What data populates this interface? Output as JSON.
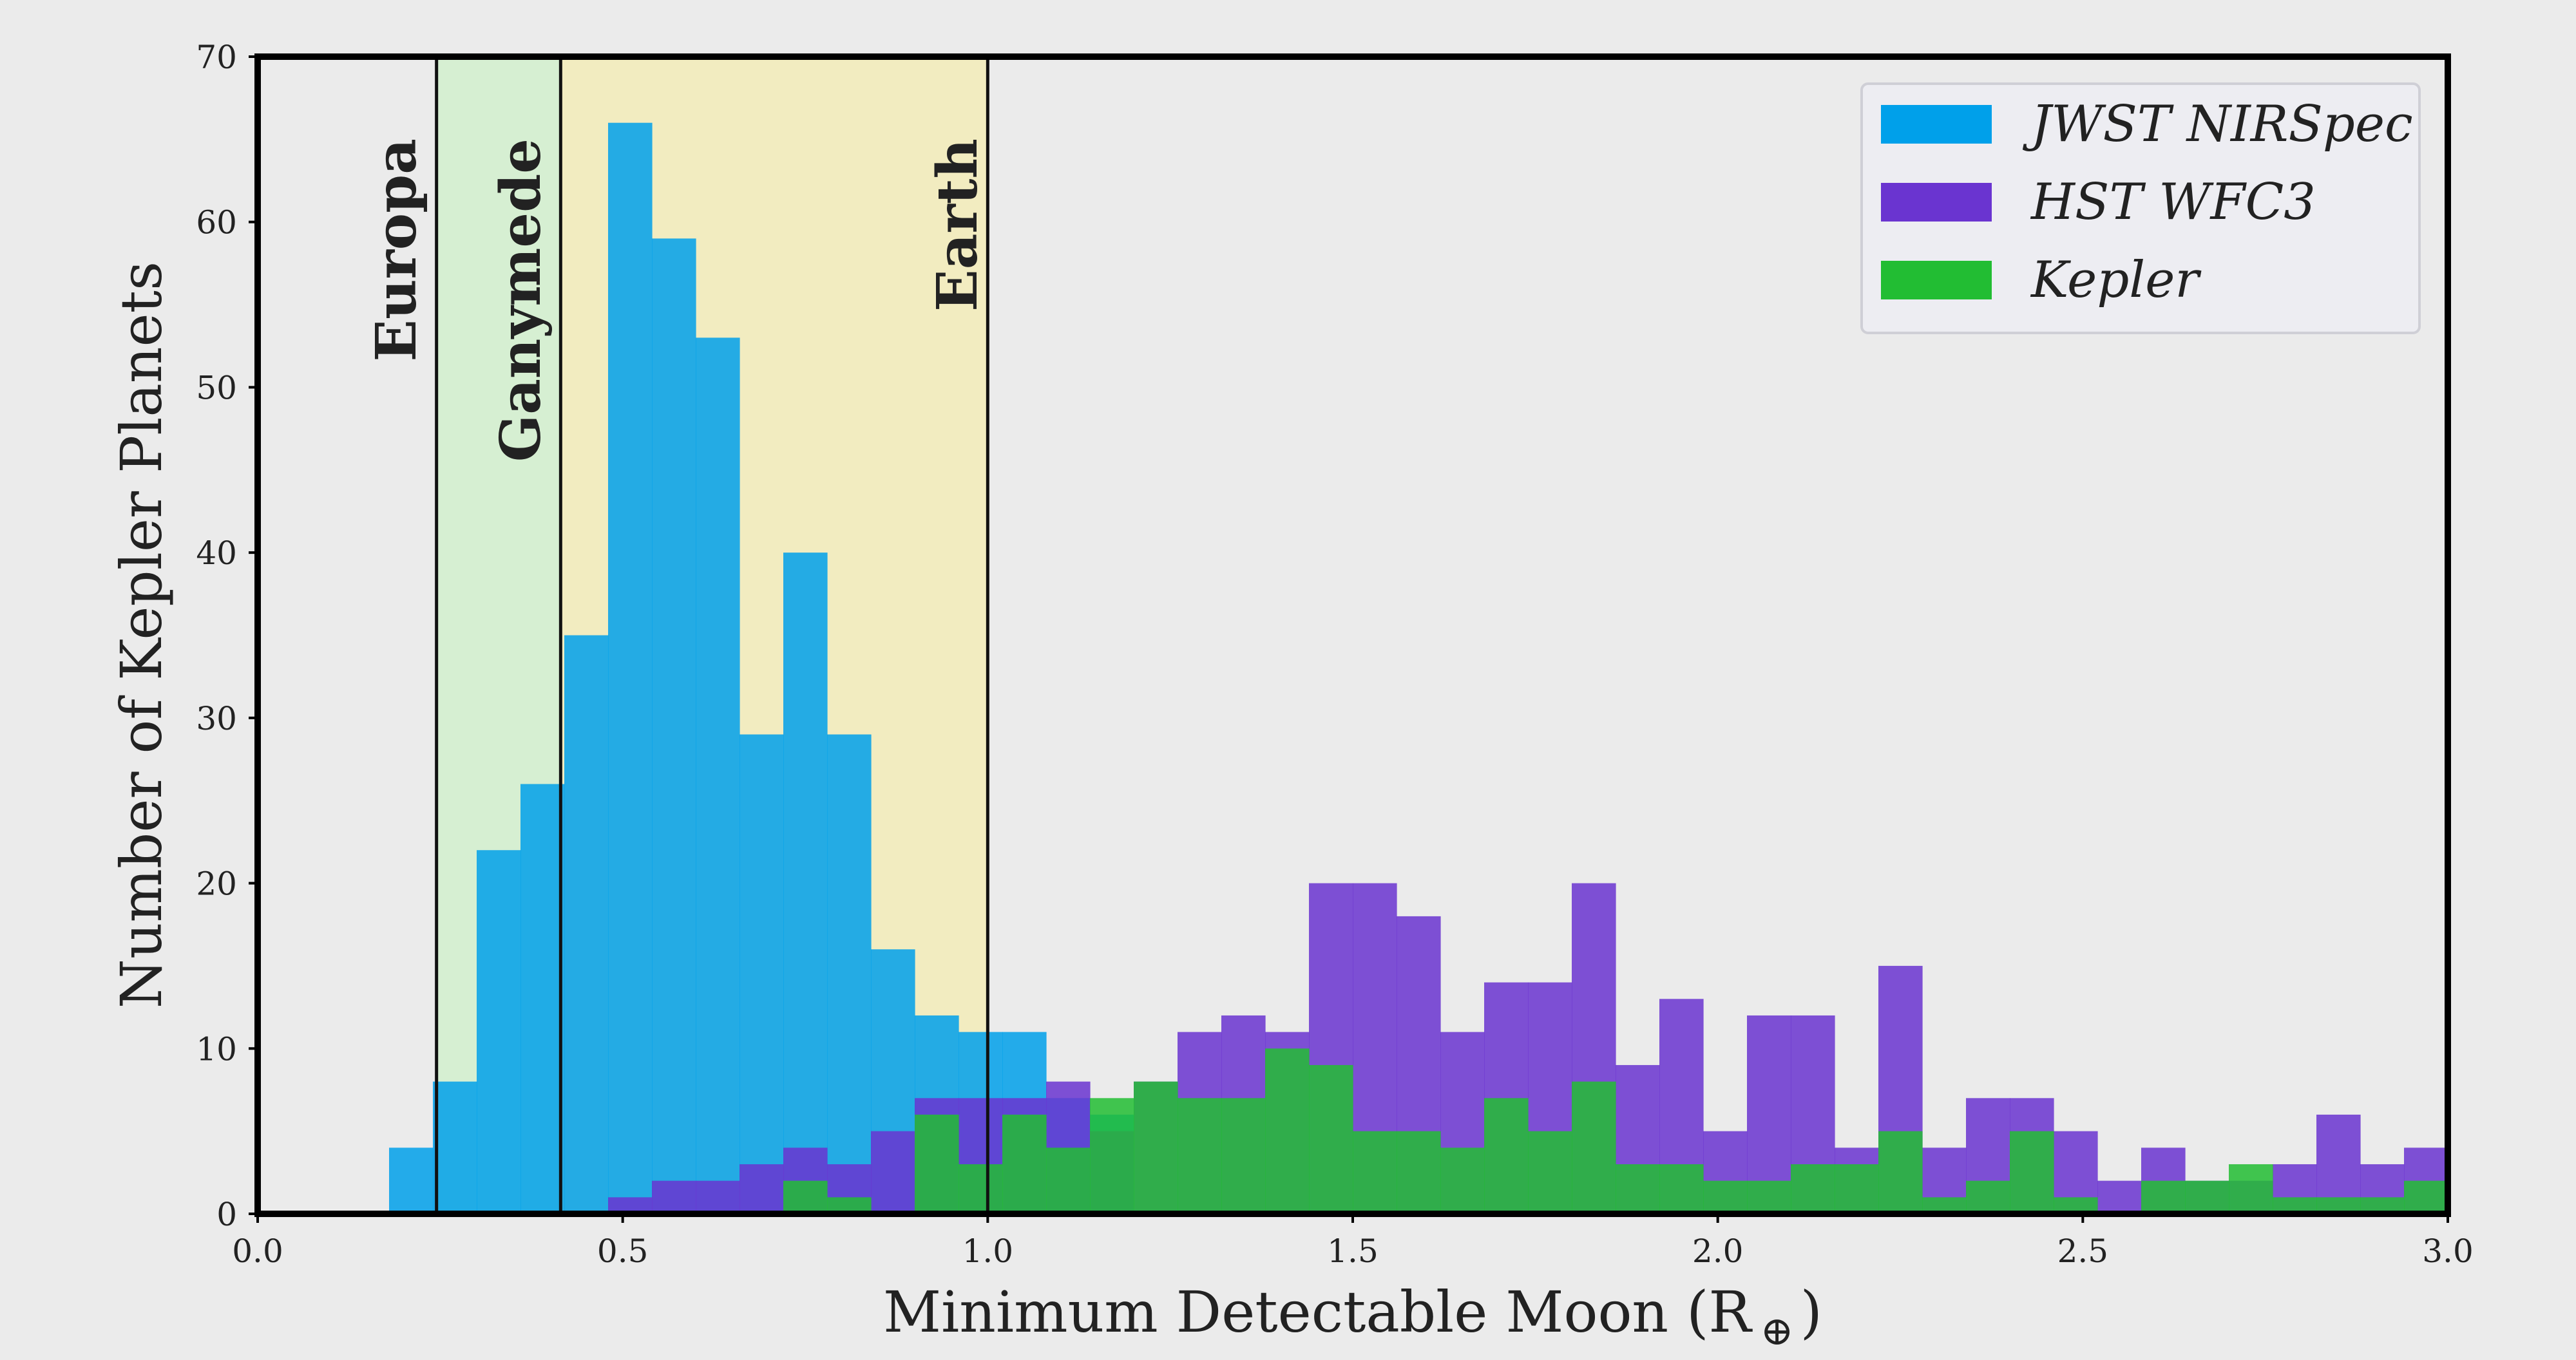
{
  "chart_data": {
    "type": "bar",
    "xlabel": "Minimum Detectable Moon (R",
    "xlabel_symbol": "⊕",
    "xlabel_close": ")",
    "ylabel": "Number of Kepler Planets",
    "xlim": [
      0.0,
      3.0
    ],
    "ylim": [
      0,
      70
    ],
    "grid": false,
    "legend_position": "top-right",
    "bin_width": 0.06,
    "x_ticks": [
      "0.0",
      "0.5",
      "1.0",
      "1.5",
      "2.0",
      "2.5",
      "3.0"
    ],
    "x_tick_values": [
      0.0,
      0.5,
      1.0,
      1.5,
      2.0,
      2.5,
      3.0
    ],
    "y_ticks": [
      "0",
      "10",
      "20",
      "30",
      "40",
      "50",
      "60",
      "70"
    ],
    "y_tick_values": [
      0,
      10,
      20,
      30,
      40,
      50,
      60,
      70
    ],
    "reference_bands": [
      {
        "name": "Europa",
        "x": 0.245,
        "color": "#d6efd2",
        "from": 0.245,
        "to": 0.415
      },
      {
        "name": "Ganymede",
        "x": 0.415,
        "color": "#f2ecc0",
        "from": 0.415,
        "to": 1.0
      },
      {
        "name": "Earth",
        "x": 1.0
      }
    ],
    "series": [
      {
        "name": "JWST NIRSpec",
        "color": "#00a0ea",
        "x": [
          0.18,
          0.24,
          0.3,
          0.36,
          0.42,
          0.48,
          0.54,
          0.6,
          0.66,
          0.72,
          0.78,
          0.84,
          0.9,
          0.96,
          1.02,
          1.08,
          1.14
        ],
        "values": [
          4,
          8,
          22,
          26,
          35,
          66,
          59,
          53,
          29,
          40,
          29,
          16,
          12,
          11,
          11,
          7,
          6
        ]
      },
      {
        "name": "HST WFC3",
        "color": "#6a34d0",
        "x": [
          0.48,
          0.54,
          0.6,
          0.66,
          0.72,
          0.78,
          0.84,
          0.9,
          0.96,
          1.02,
          1.08,
          1.14,
          1.2,
          1.26,
          1.32,
          1.38,
          1.44,
          1.5,
          1.56,
          1.62,
          1.68,
          1.74,
          1.8,
          1.86,
          1.92,
          1.98,
          2.04,
          2.1,
          2.16,
          2.22,
          2.28,
          2.34,
          2.4,
          2.46,
          2.52,
          2.58,
          2.64,
          2.7,
          2.76,
          2.82,
          2.88,
          2.94
        ],
        "values": [
          1,
          2,
          2,
          3,
          4,
          3,
          5,
          7,
          7,
          7,
          8,
          5,
          8,
          11,
          12,
          11,
          20,
          20,
          18,
          11,
          14,
          14,
          20,
          9,
          13,
          5,
          12,
          12,
          4,
          15,
          4,
          7,
          7,
          5,
          2,
          4,
          2,
          2,
          3,
          6,
          3,
          4
        ]
      },
      {
        "name": "Kepler",
        "color": "#22bd33",
        "x": [
          0.72,
          0.78,
          0.84,
          0.9,
          0.96,
          1.02,
          1.08,
          1.14,
          1.2,
          1.26,
          1.32,
          1.38,
          1.44,
          1.5,
          1.56,
          1.62,
          1.68,
          1.74,
          1.8,
          1.86,
          1.92,
          1.98,
          2.04,
          2.1,
          2.16,
          2.22,
          2.28,
          2.34,
          2.4,
          2.46,
          2.52,
          2.58,
          2.64,
          2.7,
          2.76,
          2.82,
          2.88,
          2.94
        ],
        "values": [
          2,
          1,
          0,
          6,
          3,
          6,
          4,
          7,
          8,
          7,
          7,
          10,
          9,
          5,
          5,
          4,
          7,
          5,
          8,
          3,
          3,
          2,
          2,
          3,
          3,
          5,
          1,
          2,
          5,
          1,
          0,
          2,
          2,
          3,
          1,
          1,
          1,
          2
        ]
      }
    ]
  }
}
